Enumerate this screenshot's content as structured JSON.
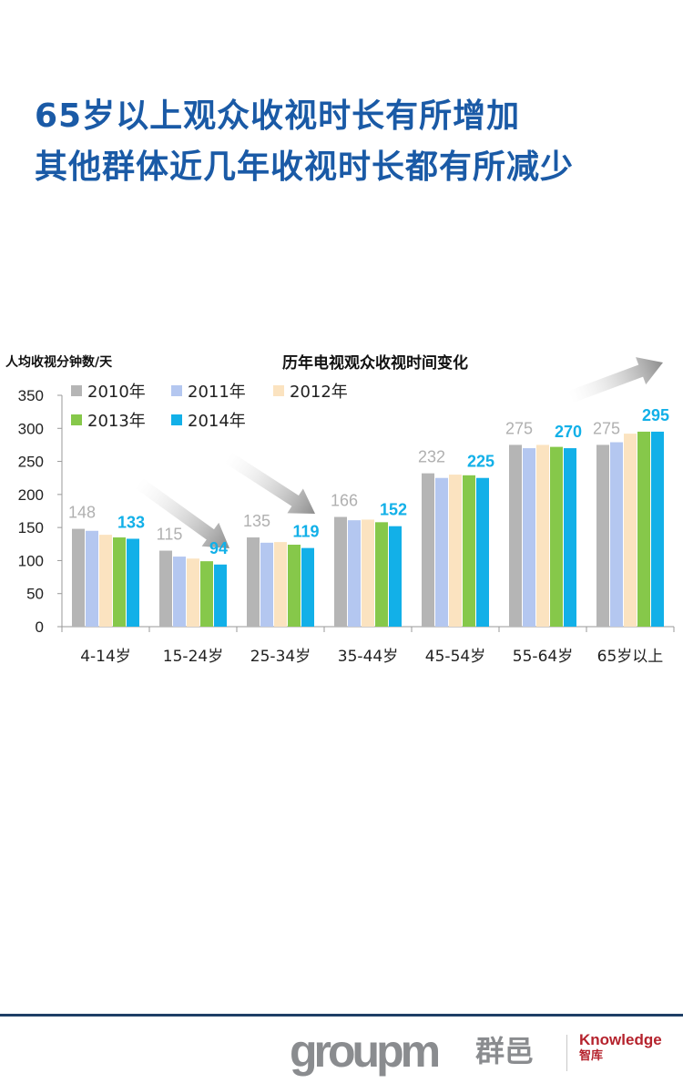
{
  "headline": {
    "line1": "65岁以上观众收视时长有所增加",
    "line2": "其他群体近几年收视时长都有所减少"
  },
  "chart_data": {
    "type": "bar",
    "title": "历年电视观众收视时间变化",
    "ylabel": "人均收视分钟数/天",
    "xlabel": "",
    "ylim": [
      0,
      350
    ],
    "yticks": [
      0,
      50,
      100,
      150,
      200,
      250,
      300,
      350
    ],
    "grid": false,
    "legend": "top-left",
    "categories": [
      "4-14岁",
      "15-24岁",
      "25-34岁",
      "35-44岁",
      "45-54岁",
      "55-64岁",
      "65岁以上"
    ],
    "series": [
      {
        "name": "2010年",
        "color": "#b5b5b5",
        "values": [
          148,
          115,
          135,
          166,
          232,
          275,
          275
        ]
      },
      {
        "name": "2011年",
        "color": "#b4c7f0",
        "values": [
          145,
          106,
          127,
          161,
          225,
          270,
          279
        ]
      },
      {
        "name": "2012年",
        "color": "#fbe3c0",
        "values": [
          139,
          103,
          128,
          162,
          230,
          275,
          292
        ]
      },
      {
        "name": "2013年",
        "color": "#86c84a",
        "values": [
          135,
          99,
          124,
          158,
          229,
          272,
          295
        ]
      },
      {
        "name": "2014年",
        "color": "#12b0e8",
        "values": [
          133,
          94,
          119,
          152,
          225,
          270,
          295
        ]
      }
    ],
    "data_labels": [
      {
        "series": "2010年",
        "values": [
          148,
          115,
          135,
          166,
          232,
          275,
          275
        ],
        "color": "#b0b0b0"
      },
      {
        "series": "2014年",
        "values": [
          133,
          94,
          119,
          152,
          225,
          270,
          295
        ],
        "color": "#12b0e8"
      }
    ],
    "annotations": [
      "arrow-down",
      "arrow-down",
      "arrow-up"
    ]
  },
  "footer": {
    "logo_wordmark": "groupm",
    "logo_cn": "群邑",
    "knowledge_label": "Knowledge",
    "knowledge_cn": "智库"
  }
}
